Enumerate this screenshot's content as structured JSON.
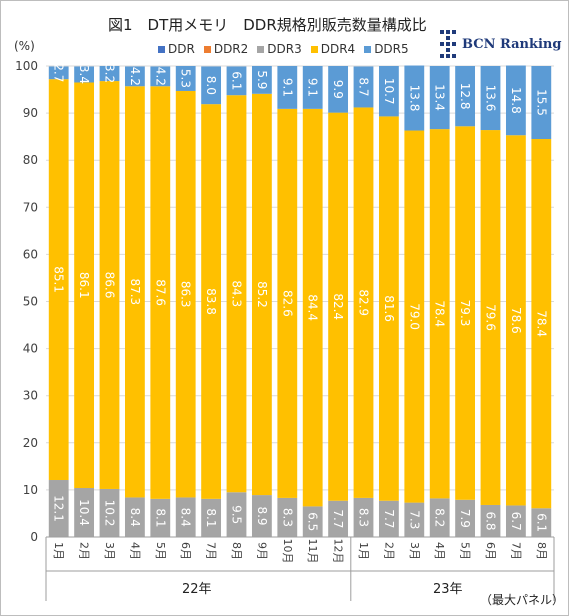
{
  "header": {
    "title": "図1　DT用メモリ　DDR規格別販売数量構成比",
    "unit": "(%)",
    "logo_text": "BCN Ranking",
    "note": "（最大パネル）"
  },
  "years": [
    "22年",
    "23年"
  ],
  "colors": {
    "DDR": "#4472c4",
    "DDR2": "#ed7d31",
    "DDR3": "#a5a5a5",
    "DDR4": "#ffc000",
    "DDR5": "#5b9bd5",
    "grid": "#d9d9d9",
    "axis_text": "#404040",
    "label_text": "#ffffff",
    "logo": "#1f3a7a"
  },
  "chart_data": {
    "type": "bar",
    "stacked": true,
    "title": "図1　DT用メモリ　DDR規格別販売数量構成比",
    "ylabel": "(%)",
    "ylim": [
      0,
      100
    ],
    "yticks": [
      0,
      10,
      20,
      30,
      40,
      50,
      60,
      70,
      80,
      90,
      100
    ],
    "grid": true,
    "legend_position": "top",
    "categories": [
      "1月",
      "2月",
      "3月",
      "4月",
      "5月",
      "6月",
      "7月",
      "8月",
      "9月",
      "10月",
      "11月",
      "12月",
      "1月",
      "2月",
      "3月",
      "4月",
      "5月",
      "6月",
      "7月",
      "8月"
    ],
    "year_groups": [
      {
        "label": "22年",
        "count": 12
      },
      {
        "label": "23年",
        "count": 8
      }
    ],
    "series": [
      {
        "name": "DDR",
        "values": [
          0,
          0,
          0,
          0,
          0,
          0,
          0,
          0,
          0,
          0,
          0,
          0,
          0,
          0,
          0,
          0,
          0,
          0,
          0,
          0
        ]
      },
      {
        "name": "DDR2",
        "values": [
          0,
          0,
          0,
          0,
          0,
          0,
          0,
          0,
          0,
          0,
          0,
          0,
          0,
          0,
          0,
          0,
          0,
          0,
          0,
          0
        ]
      },
      {
        "name": "DDR3",
        "values": [
          12.1,
          10.4,
          10.2,
          8.4,
          8.1,
          8.4,
          8.1,
          9.5,
          8.9,
          8.3,
          6.5,
          7.7,
          8.3,
          7.7,
          7.3,
          8.2,
          7.9,
          6.8,
          6.7,
          6.1
        ]
      },
      {
        "name": "DDR4",
        "values": [
          85.1,
          86.1,
          86.6,
          87.3,
          87.6,
          86.3,
          83.8,
          84.3,
          85.2,
          82.6,
          84.4,
          82.4,
          82.9,
          81.6,
          79.0,
          78.4,
          79.3,
          79.6,
          78.6,
          78.4
        ]
      },
      {
        "name": "DDR5",
        "values": [
          2.7,
          3.4,
          3.2,
          4.2,
          4.2,
          5.3,
          8.0,
          6.1,
          5.9,
          9.1,
          9.1,
          9.9,
          8.7,
          10.7,
          13.8,
          13.4,
          12.8,
          13.6,
          14.8,
          15.5
        ]
      }
    ],
    "labels": {
      "DDR3": [
        "12.1",
        "10.4",
        "10.2",
        "8.4",
        "8.1",
        "8.4",
        "8.1",
        "9.5",
        "8.9",
        "8.3",
        "6.5",
        "7.7",
        "8.3",
        "7.7",
        "7.3",
        "8.2",
        "7.9",
        "6.8",
        "6.7",
        "6.1"
      ],
      "DDR4": [
        "85.1",
        "86.1",
        "86.6",
        "87.3",
        "87.6",
        "86.3",
        "83.8",
        "84.3",
        "85.2",
        "82.6",
        "84.4",
        "82.4",
        "82.9",
        "81.6",
        "79.0",
        "78.4",
        "79.3",
        "79.6",
        "78.6",
        "78.4"
      ],
      "DDR5": [
        "2.7",
        "3.4",
        "3.2",
        "4.2",
        "4.2",
        "5.3",
        "8.0",
        "6.1",
        "5.9",
        "9.1",
        "9.1",
        "9.9",
        "8.7",
        "10.7",
        "13.8",
        "13.4",
        "12.8",
        "13.6",
        "14.8",
        "15.5"
      ]
    }
  }
}
